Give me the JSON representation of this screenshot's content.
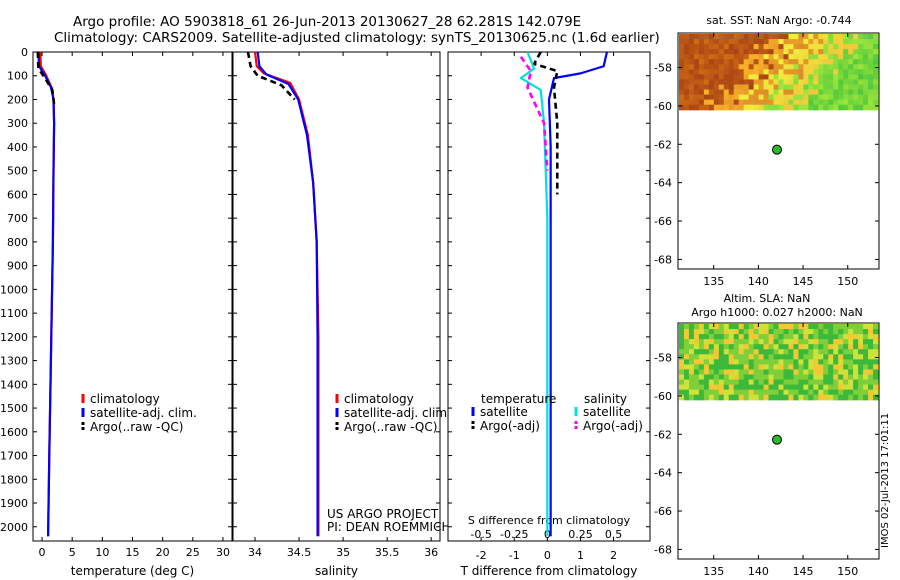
{
  "header": {
    "line1": "Argo profile: AO 5903818_61 26-Jun-2013 20130627_28 62.281S 142.079E",
    "line2": "Climatology: CARS2009. Satellite-adjusted climatology: synTS_20130625.nc (1.6d earlier)"
  },
  "chart_data": [
    {
      "type": "line",
      "xlabel": "temperature (deg C)",
      "ylim": [
        2060,
        0
      ],
      "xlim": [
        -1.5,
        31.5
      ],
      "x_ticks": [
        "0",
        "5",
        "10",
        "15",
        "20",
        "25",
        "30"
      ],
      "y_ticks": [
        "0",
        "100",
        "200",
        "300",
        "400",
        "500",
        "600",
        "700",
        "800",
        "900",
        "1000",
        "1100",
        "1200",
        "1300",
        "1400",
        "1500",
        "1600",
        "1700",
        "1800",
        "1900",
        "2000"
      ],
      "legend": [
        "climatology",
        "satellite-adj. clim.",
        "Argo(..raw -QC)"
      ],
      "series": [
        {
          "name": "climatology",
          "color": "#ff0000",
          "x": [
            -0.3,
            -0.2,
            0.6,
            1.6,
            1.9,
            2.0,
            1.9,
            1.8,
            1.6,
            1.4,
            1.2,
            1.0
          ],
          "y": [
            0,
            60,
            95,
            150,
            200,
            300,
            500,
            800,
            1100,
            1400,
            1700,
            2040
          ]
        },
        {
          "name": "satellite-adj. clim.",
          "color": "#0000ff",
          "x": [
            -0.6,
            -0.5,
            0.4,
            1.5,
            1.9,
            2.0,
            1.9,
            1.8,
            1.6,
            1.4,
            1.2,
            1.0
          ],
          "y": [
            0,
            60,
            95,
            150,
            200,
            300,
            500,
            800,
            1100,
            1400,
            1700,
            2040
          ]
        },
        {
          "name": "Argo(..raw -QC)",
          "color": "#000000",
          "x": [
            -0.7,
            -0.6,
            0.5,
            1.7,
            2.0
          ],
          "y": [
            0,
            70,
            110,
            160,
            220
          ]
        }
      ]
    },
    {
      "type": "line",
      "xlabel": "salinity",
      "ylim": [
        2060,
        0
      ],
      "xlim": [
        33.75,
        36.1
      ],
      "x_ticks": [
        "34",
        "34.5",
        "35",
        "35.5",
        "36"
      ],
      "legend": [
        "climatology",
        "satellite-adj. clim.",
        "Argo(..raw -QC)"
      ],
      "annotation": [
        "US ARGO PROJECT",
        "PI: DEAN ROEMMICH"
      ],
      "series": [
        {
          "name": "climatology",
          "color": "#ff0000",
          "x": [
            34.0,
            34.02,
            34.1,
            34.4,
            34.5,
            34.6,
            34.66,
            34.7,
            34.72,
            34.72
          ],
          "y": [
            0,
            60,
            90,
            130,
            200,
            350,
            550,
            800,
            1200,
            2040
          ]
        },
        {
          "name": "satellite-adj. clim.",
          "color": "#0000ff",
          "x": [
            34.03,
            34.05,
            34.13,
            34.38,
            34.49,
            34.59,
            34.66,
            34.7,
            34.71,
            34.71
          ],
          "y": [
            0,
            60,
            95,
            135,
            200,
            350,
            550,
            800,
            1200,
            2040
          ]
        },
        {
          "name": "Argo(..raw -QC)",
          "color": "#000000",
          "x": [
            33.92,
            33.95,
            34.03,
            34.3,
            34.45
          ],
          "y": [
            0,
            60,
            100,
            140,
            200
          ]
        }
      ]
    },
    {
      "type": "line",
      "xlabel": "T difference from climatology",
      "xlabel2": "S difference from climatology",
      "ylim": [
        2060,
        0
      ],
      "xlim": [
        -3.0,
        3.1
      ],
      "x_ticks": [
        "-2",
        "-1",
        "0",
        "1",
        "2"
      ],
      "x2_ticks": [
        "-0.5",
        "-0.25",
        "0",
        "0.25",
        "0.5"
      ],
      "legend_titles": [
        "temperature",
        "salinity"
      ],
      "legend": [
        "satellite",
        "Argo(-adj)",
        "satellite",
        "Argo(-adj)"
      ],
      "series": [
        {
          "name": "satellite",
          "color": "#0000ff",
          "x": [
            1.8,
            1.7,
            1.0,
            0.2,
            0.05,
            0.1,
            0.1,
            0.1,
            0.1
          ],
          "y": [
            0,
            60,
            90,
            110,
            200,
            400,
            800,
            1400,
            2040
          ]
        },
        {
          "name": "Argo(-adj)",
          "color": "#000000",
          "x": [
            -0.2,
            -0.4,
            0.3,
            0.2,
            0.3,
            0.3,
            0.3
          ],
          "y": [
            0,
            50,
            80,
            150,
            300,
            450,
            600
          ]
        },
        {
          "name": "satellite",
          "color": "#00e0e0",
          "x": [
            -0.6,
            -0.4,
            -0.8,
            -0.2,
            -0.1,
            0.0,
            0.0,
            0.0
          ],
          "y": [
            0,
            70,
            110,
            160,
            300,
            700,
            1400,
            2040
          ]
        },
        {
          "name": "Argo(-adj)",
          "color": "#ff00ff",
          "x": [
            -0.8,
            -0.5,
            -0.6,
            -0.1,
            0.0
          ],
          "y": [
            20,
            80,
            150,
            300,
            500
          ]
        }
      ]
    },
    {
      "type": "heatmap",
      "title": "sat. SST: NaN Argo: -0.744",
      "x_ticks": [
        "135",
        "140",
        "145",
        "150"
      ],
      "y_ticks": [
        "-58",
        "-60",
        "-62",
        "-64",
        "-66",
        "-68"
      ],
      "xlim": [
        131,
        153.5
      ],
      "ylim": [
        -68.5,
        -56.2
      ],
      "marker": {
        "lon": 142.079,
        "lat": -62.281
      },
      "data_lat_min": -60.2
    },
    {
      "type": "heatmap",
      "title": "Altim. SLA: NaN",
      "subtitle": "Argo h1000: 0.027 h2000: NaN",
      "x_ticks": [
        "135",
        "140",
        "145",
        "150"
      ],
      "y_ticks": [
        "-58",
        "-60",
        "-62",
        "-64",
        "-66",
        "-68"
      ],
      "xlim": [
        131,
        153.5
      ],
      "ylim": [
        -68.5,
        -56.2
      ],
      "marker": {
        "lon": 142.079,
        "lat": -62.281
      },
      "data_lat_min": -60.2
    }
  ],
  "footer": {
    "credit": "IMOS 02-Jul-2013 17:01:11"
  }
}
